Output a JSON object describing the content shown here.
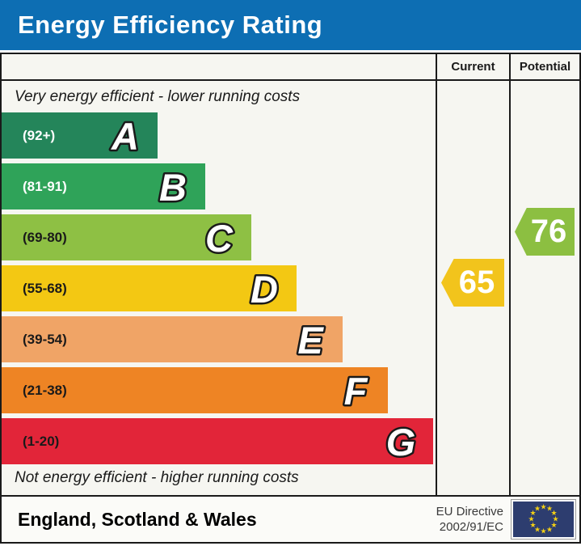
{
  "title": "Energy Efficiency Rating",
  "top_note": "Very energy efficient - lower running costs",
  "bottom_note": "Not energy efficient - higher running costs",
  "footer": {
    "region": "England, Scotland & Wales",
    "directive_line1": "EU Directive",
    "directive_line2": "2002/91/EC"
  },
  "eu_flag": {
    "stars": 12,
    "background": "#2d3d6f",
    "star_color": "#f3cf15"
  },
  "colors": {
    "title_bar": "#0d6eb3",
    "border": "#1a1a1a",
    "chart_background": "#f6f6f1"
  },
  "chart_data": {
    "type": "bar",
    "title": "Energy Efficiency Rating",
    "legend_position": "none",
    "grid": false,
    "bands": [
      {
        "letter": "A",
        "range_label": "(92+)",
        "min": 92,
        "max": 100,
        "color": "#24855A",
        "text_color": "#ffffff",
        "width_pct": 36.0
      },
      {
        "letter": "B",
        "range_label": "(81-91)",
        "min": 81,
        "max": 91,
        "color": "#2FA359",
        "text_color": "#ffffff",
        "width_pct": 47.0
      },
      {
        "letter": "C",
        "range_label": "(69-80)",
        "min": 69,
        "max": 80,
        "color": "#8EC044",
        "text_color": "#1a1a1a",
        "width_pct": 57.5
      },
      {
        "letter": "D",
        "range_label": "(55-68)",
        "min": 55,
        "max": 68,
        "color": "#F3C813",
        "text_color": "#1a1a1a",
        "width_pct": 68.0
      },
      {
        "letter": "E",
        "range_label": "(39-54)",
        "min": 39,
        "max": 54,
        "color": "#F0A466",
        "text_color": "#1a1a1a",
        "width_pct": 78.5
      },
      {
        "letter": "F",
        "range_label": "(21-38)",
        "min": 21,
        "max": 38,
        "color": "#EE8424",
        "text_color": "#1a1a1a",
        "width_pct": 89.0
      },
      {
        "letter": "G",
        "range_label": "(1-20)",
        "min": 1,
        "max": 20,
        "color": "#E22539",
        "text_color": "#1a1a1a",
        "width_pct": 99.5
      }
    ],
    "current": {
      "label": "Current",
      "value": 65,
      "band": "D",
      "color": "#F2C41C"
    },
    "potential": {
      "label": "Potential",
      "value": 76,
      "band": "C",
      "color": "#8CBF41"
    }
  }
}
